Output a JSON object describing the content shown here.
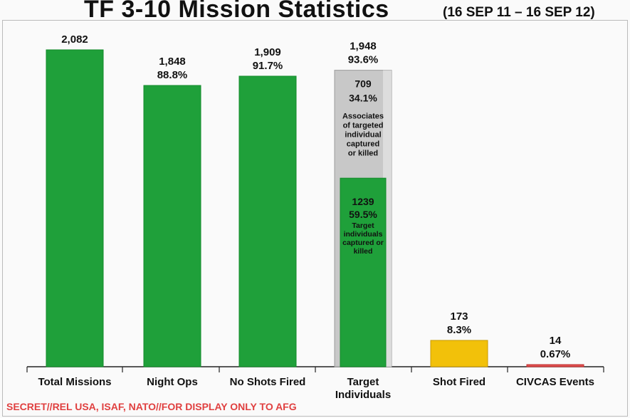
{
  "header": {
    "title": "TF 3-10 Mission Statistics",
    "subtitle": "(16 SEP 11 – 16 SEP 12)"
  },
  "footer": {
    "classification": "SECRET//REL USA, ISAF, NATO//FOR DISPLAY ONLY TO AFG"
  },
  "colors": {
    "green": "#1fa03a",
    "gray": "#c8c8c8",
    "yellow": "#f2c10a",
    "red": "#e05050"
  },
  "chart_data": {
    "type": "bar",
    "categories": [
      "Total Missions",
      "Night Ops",
      "No Shots Fired",
      "Target\nIndividuals",
      "Shot Fired",
      "CIVCAS Events"
    ],
    "values": [
      2082,
      1848,
      1909,
      1948,
      173,
      14
    ],
    "value_labels": [
      [
        "2,082"
      ],
      [
        "1,848",
        "88.8%"
      ],
      [
        "1,909",
        "91.7%"
      ],
      [
        "1,948",
        "93.6%"
      ],
      [
        "173",
        "8.3%"
      ],
      [
        "14",
        "0.67%"
      ]
    ],
    "bar_colors": [
      "green",
      "green",
      "green",
      "gray",
      "yellow",
      "red"
    ],
    "stacked": {
      "category": "Target\nIndividuals",
      "segments": [
        {
          "value": 1239,
          "color": "green",
          "label_value": "1239",
          "label_pct": "59.5%",
          "label_text": "Target\nindividuals\ncaptured or\nkilled"
        },
        {
          "value": 709,
          "color": "gray",
          "label_value": "709",
          "label_pct": "34.1%",
          "label_text": "Associates\nof targeted\nindividual\ncaptured\nor killed"
        }
      ]
    },
    "ylim": [
      0,
      2082
    ],
    "grid": false,
    "legend": "none"
  }
}
